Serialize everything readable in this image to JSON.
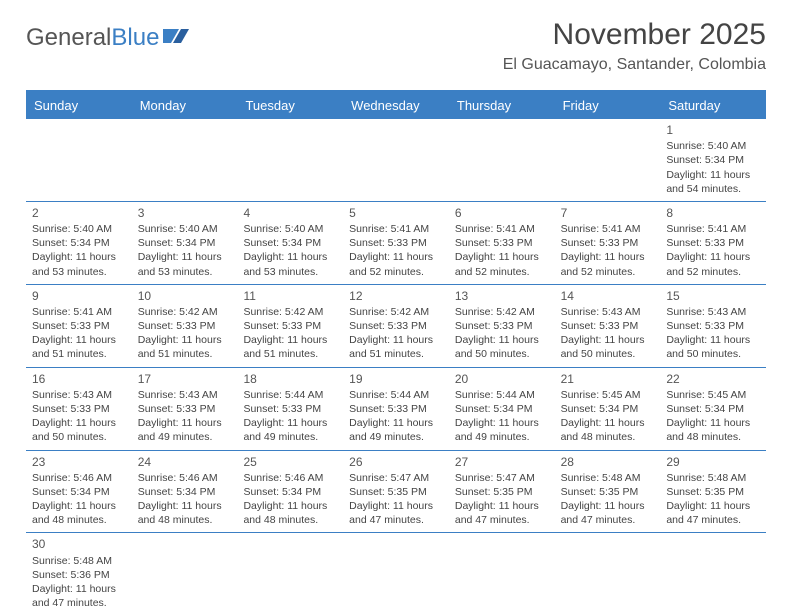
{
  "logo": {
    "text_general": "General",
    "text_blue": "Blue"
  },
  "header": {
    "month_title": "November 2025",
    "location": "El Guacamayo, Santander, Colombia"
  },
  "colors": {
    "accent": "#3b7fc4",
    "text": "#444444",
    "muted": "#555555",
    "background": "#ffffff"
  },
  "weekdays": [
    "Sunday",
    "Monday",
    "Tuesday",
    "Wednesday",
    "Thursday",
    "Friday",
    "Saturday"
  ],
  "weeks": [
    [
      {
        "empty": true
      },
      {
        "empty": true
      },
      {
        "empty": true
      },
      {
        "empty": true
      },
      {
        "empty": true
      },
      {
        "empty": true
      },
      {
        "day": "1",
        "sunrise": "Sunrise: 5:40 AM",
        "sunset": "Sunset: 5:34 PM",
        "daylight1": "Daylight: 11 hours",
        "daylight2": "and 54 minutes."
      }
    ],
    [
      {
        "day": "2",
        "sunrise": "Sunrise: 5:40 AM",
        "sunset": "Sunset: 5:34 PM",
        "daylight1": "Daylight: 11 hours",
        "daylight2": "and 53 minutes."
      },
      {
        "day": "3",
        "sunrise": "Sunrise: 5:40 AM",
        "sunset": "Sunset: 5:34 PM",
        "daylight1": "Daylight: 11 hours",
        "daylight2": "and 53 minutes."
      },
      {
        "day": "4",
        "sunrise": "Sunrise: 5:40 AM",
        "sunset": "Sunset: 5:34 PM",
        "daylight1": "Daylight: 11 hours",
        "daylight2": "and 53 minutes."
      },
      {
        "day": "5",
        "sunrise": "Sunrise: 5:41 AM",
        "sunset": "Sunset: 5:33 PM",
        "daylight1": "Daylight: 11 hours",
        "daylight2": "and 52 minutes."
      },
      {
        "day": "6",
        "sunrise": "Sunrise: 5:41 AM",
        "sunset": "Sunset: 5:33 PM",
        "daylight1": "Daylight: 11 hours",
        "daylight2": "and 52 minutes."
      },
      {
        "day": "7",
        "sunrise": "Sunrise: 5:41 AM",
        "sunset": "Sunset: 5:33 PM",
        "daylight1": "Daylight: 11 hours",
        "daylight2": "and 52 minutes."
      },
      {
        "day": "8",
        "sunrise": "Sunrise: 5:41 AM",
        "sunset": "Sunset: 5:33 PM",
        "daylight1": "Daylight: 11 hours",
        "daylight2": "and 52 minutes."
      }
    ],
    [
      {
        "day": "9",
        "sunrise": "Sunrise: 5:41 AM",
        "sunset": "Sunset: 5:33 PM",
        "daylight1": "Daylight: 11 hours",
        "daylight2": "and 51 minutes."
      },
      {
        "day": "10",
        "sunrise": "Sunrise: 5:42 AM",
        "sunset": "Sunset: 5:33 PM",
        "daylight1": "Daylight: 11 hours",
        "daylight2": "and 51 minutes."
      },
      {
        "day": "11",
        "sunrise": "Sunrise: 5:42 AM",
        "sunset": "Sunset: 5:33 PM",
        "daylight1": "Daylight: 11 hours",
        "daylight2": "and 51 minutes."
      },
      {
        "day": "12",
        "sunrise": "Sunrise: 5:42 AM",
        "sunset": "Sunset: 5:33 PM",
        "daylight1": "Daylight: 11 hours",
        "daylight2": "and 51 minutes."
      },
      {
        "day": "13",
        "sunrise": "Sunrise: 5:42 AM",
        "sunset": "Sunset: 5:33 PM",
        "daylight1": "Daylight: 11 hours",
        "daylight2": "and 50 minutes."
      },
      {
        "day": "14",
        "sunrise": "Sunrise: 5:43 AM",
        "sunset": "Sunset: 5:33 PM",
        "daylight1": "Daylight: 11 hours",
        "daylight2": "and 50 minutes."
      },
      {
        "day": "15",
        "sunrise": "Sunrise: 5:43 AM",
        "sunset": "Sunset: 5:33 PM",
        "daylight1": "Daylight: 11 hours",
        "daylight2": "and 50 minutes."
      }
    ],
    [
      {
        "day": "16",
        "sunrise": "Sunrise: 5:43 AM",
        "sunset": "Sunset: 5:33 PM",
        "daylight1": "Daylight: 11 hours",
        "daylight2": "and 50 minutes."
      },
      {
        "day": "17",
        "sunrise": "Sunrise: 5:43 AM",
        "sunset": "Sunset: 5:33 PM",
        "daylight1": "Daylight: 11 hours",
        "daylight2": "and 49 minutes."
      },
      {
        "day": "18",
        "sunrise": "Sunrise: 5:44 AM",
        "sunset": "Sunset: 5:33 PM",
        "daylight1": "Daylight: 11 hours",
        "daylight2": "and 49 minutes."
      },
      {
        "day": "19",
        "sunrise": "Sunrise: 5:44 AM",
        "sunset": "Sunset: 5:33 PM",
        "daylight1": "Daylight: 11 hours",
        "daylight2": "and 49 minutes."
      },
      {
        "day": "20",
        "sunrise": "Sunrise: 5:44 AM",
        "sunset": "Sunset: 5:34 PM",
        "daylight1": "Daylight: 11 hours",
        "daylight2": "and 49 minutes."
      },
      {
        "day": "21",
        "sunrise": "Sunrise: 5:45 AM",
        "sunset": "Sunset: 5:34 PM",
        "daylight1": "Daylight: 11 hours",
        "daylight2": "and 48 minutes."
      },
      {
        "day": "22",
        "sunrise": "Sunrise: 5:45 AM",
        "sunset": "Sunset: 5:34 PM",
        "daylight1": "Daylight: 11 hours",
        "daylight2": "and 48 minutes."
      }
    ],
    [
      {
        "day": "23",
        "sunrise": "Sunrise: 5:46 AM",
        "sunset": "Sunset: 5:34 PM",
        "daylight1": "Daylight: 11 hours",
        "daylight2": "and 48 minutes."
      },
      {
        "day": "24",
        "sunrise": "Sunrise: 5:46 AM",
        "sunset": "Sunset: 5:34 PM",
        "daylight1": "Daylight: 11 hours",
        "daylight2": "and 48 minutes."
      },
      {
        "day": "25",
        "sunrise": "Sunrise: 5:46 AM",
        "sunset": "Sunset: 5:34 PM",
        "daylight1": "Daylight: 11 hours",
        "daylight2": "and 48 minutes."
      },
      {
        "day": "26",
        "sunrise": "Sunrise: 5:47 AM",
        "sunset": "Sunset: 5:35 PM",
        "daylight1": "Daylight: 11 hours",
        "daylight2": "and 47 minutes."
      },
      {
        "day": "27",
        "sunrise": "Sunrise: 5:47 AM",
        "sunset": "Sunset: 5:35 PM",
        "daylight1": "Daylight: 11 hours",
        "daylight2": "and 47 minutes."
      },
      {
        "day": "28",
        "sunrise": "Sunrise: 5:48 AM",
        "sunset": "Sunset: 5:35 PM",
        "daylight1": "Daylight: 11 hours",
        "daylight2": "and 47 minutes."
      },
      {
        "day": "29",
        "sunrise": "Sunrise: 5:48 AM",
        "sunset": "Sunset: 5:35 PM",
        "daylight1": "Daylight: 11 hours",
        "daylight2": "and 47 minutes."
      }
    ],
    [
      {
        "day": "30",
        "sunrise": "Sunrise: 5:48 AM",
        "sunset": "Sunset: 5:36 PM",
        "daylight1": "Daylight: 11 hours",
        "daylight2": "and 47 minutes."
      },
      {
        "empty": true
      },
      {
        "empty": true
      },
      {
        "empty": true
      },
      {
        "empty": true
      },
      {
        "empty": true
      },
      {
        "empty": true
      }
    ]
  ]
}
